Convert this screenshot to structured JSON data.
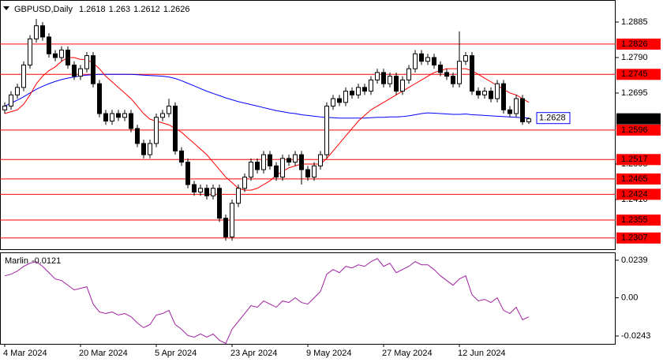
{
  "chart_data": [
    {
      "type": "candlestick",
      "title": "GBPUSD,Daily",
      "categories": [
        "4 Mar 2024",
        null,
        null,
        null,
        null,
        null,
        null,
        null,
        null,
        null,
        null,
        null,
        "20 Mar 2024",
        null,
        null,
        null,
        null,
        null,
        null,
        null,
        null,
        null,
        null,
        null,
        "5 Apr 2024",
        null,
        null,
        null,
        null,
        null,
        null,
        null,
        null,
        null,
        null,
        null,
        "23 Apr 2024",
        null,
        null,
        null,
        null,
        null,
        null,
        null,
        null,
        null,
        null,
        null,
        "9 May 2024",
        null,
        null,
        null,
        null,
        null,
        null,
        null,
        null,
        null,
        null,
        null,
        "27 May 2024",
        null,
        null,
        null,
        null,
        null,
        null,
        null,
        null,
        null,
        null,
        null,
        "12 Jun 2024",
        null,
        null,
        null,
        null,
        null,
        null,
        null,
        null,
        null,
        null,
        null
      ],
      "open": [
        1.265,
        1.266,
        1.269,
        1.271,
        1.277,
        1.284,
        1.2875,
        1.2845,
        1.28,
        1.279,
        1.281,
        1.277,
        1.274,
        1.276,
        1.2795,
        1.272,
        1.264,
        1.262,
        1.264,
        1.263,
        1.264,
        1.26,
        1.256,
        1.253,
        1.256,
        1.263,
        1.264,
        1.266,
        1.254,
        1.251,
        1.245,
        1.243,
        1.244,
        1.242,
        1.244,
        1.236,
        1.231,
        1.24,
        1.244,
        1.247,
        1.251,
        1.249,
        1.253,
        1.25,
        1.247,
        1.252,
        1.251,
        1.253,
        1.249,
        1.247,
        1.25,
        1.253,
        1.266,
        1.268,
        1.267,
        1.27,
        1.269,
        1.271,
        1.27,
        1.273,
        1.275,
        1.272,
        1.274,
        1.27,
        1.273,
        1.276,
        1.28,
        1.278,
        1.279,
        1.277,
        1.275,
        1.274,
        1.272,
        1.278,
        1.2795,
        1.27,
        1.269,
        1.27,
        1.268,
        1.272,
        1.265,
        1.264,
        1.268,
        1.2618
      ],
      "high": [
        1.267,
        1.27,
        1.272,
        1.278,
        1.285,
        1.2893,
        1.2885,
        1.2855,
        1.281,
        1.282,
        1.282,
        1.278,
        1.277,
        1.2805,
        1.2805,
        1.273,
        1.265,
        1.265,
        1.265,
        1.265,
        1.265,
        1.261,
        1.257,
        1.257,
        1.264,
        1.265,
        1.268,
        1.267,
        1.255,
        1.252,
        1.246,
        1.245,
        1.245,
        1.245,
        1.245,
        1.237,
        1.241,
        1.245,
        1.248,
        1.252,
        1.252,
        1.254,
        1.254,
        1.251,
        1.253,
        1.253,
        1.254,
        1.254,
        1.25,
        1.251,
        1.254,
        1.267,
        1.269,
        1.269,
        1.271,
        1.271,
        1.272,
        1.272,
        1.274,
        1.276,
        1.276,
        1.275,
        1.275,
        1.274,
        1.277,
        1.281,
        1.281,
        1.28,
        1.28,
        1.278,
        1.276,
        1.275,
        1.286,
        1.2805,
        1.2805,
        1.271,
        1.271,
        1.271,
        1.273,
        1.273,
        1.266,
        1.269,
        1.269,
        1.263
      ],
      "low": [
        1.264,
        1.265,
        1.268,
        1.27,
        1.276,
        1.283,
        1.2835,
        1.279,
        1.278,
        1.278,
        1.276,
        1.273,
        1.273,
        1.275,
        1.271,
        1.263,
        1.261,
        1.261,
        1.262,
        1.262,
        1.259,
        1.255,
        1.252,
        1.252,
        1.255,
        1.262,
        1.263,
        1.253,
        1.25,
        1.244,
        1.242,
        1.242,
        1.241,
        1.241,
        1.235,
        1.23,
        1.23,
        1.239,
        1.243,
        1.246,
        1.248,
        1.248,
        1.249,
        1.246,
        1.246,
        1.25,
        1.25,
        1.245,
        1.246,
        1.246,
        1.249,
        1.252,
        1.265,
        1.266,
        1.266,
        1.268,
        1.268,
        1.269,
        1.269,
        1.272,
        1.271,
        1.271,
        1.269,
        1.269,
        1.272,
        1.275,
        1.277,
        1.277,
        1.276,
        1.274,
        1.273,
        1.271,
        1.271,
        1.277,
        1.269,
        1.268,
        1.268,
        1.267,
        1.267,
        1.264,
        1.263,
        1.263,
        1.261,
        1.2612
      ],
      "close": [
        1.266,
        1.269,
        1.271,
        1.277,
        1.284,
        1.2875,
        1.2845,
        1.28,
        1.279,
        1.281,
        1.277,
        1.274,
        1.276,
        1.2795,
        1.272,
        1.264,
        1.262,
        1.264,
        1.263,
        1.264,
        1.26,
        1.256,
        1.253,
        1.256,
        1.263,
        1.264,
        1.266,
        1.254,
        1.251,
        1.245,
        1.243,
        1.244,
        1.242,
        1.244,
        1.236,
        1.231,
        1.24,
        1.244,
        1.247,
        1.251,
        1.249,
        1.253,
        1.25,
        1.247,
        1.252,
        1.251,
        1.253,
        1.249,
        1.247,
        1.25,
        1.253,
        1.266,
        1.268,
        1.267,
        1.27,
        1.269,
        1.271,
        1.27,
        1.273,
        1.275,
        1.272,
        1.274,
        1.27,
        1.273,
        1.276,
        1.28,
        1.278,
        1.279,
        1.277,
        1.275,
        1.274,
        1.272,
        1.278,
        1.2795,
        1.27,
        1.269,
        1.27,
        1.268,
        1.272,
        1.265,
        1.264,
        1.268,
        1.2618,
        1.2626
      ],
      "up_color": "#ffffff",
      "down_color": "#000000",
      "lines": [
        {
          "color": "#0000ff",
          "values": [
            1.266,
            1.2668,
            1.2676,
            1.2685,
            1.2695,
            1.2705,
            1.2713,
            1.272,
            1.2726,
            1.2731,
            1.2735,
            1.2738,
            1.2741,
            1.2743,
            1.2744,
            1.2745,
            1.2745,
            1.2745,
            1.2745,
            1.2745,
            1.2745,
            1.2744,
            1.2743,
            1.2742,
            1.2741,
            1.274,
            1.2738,
            1.2734,
            1.2728,
            1.2721,
            1.2714,
            1.2707,
            1.27,
            1.2694,
            1.2688,
            1.2682,
            1.2677,
            1.2672,
            1.2668,
            1.2664,
            1.266,
            1.2656,
            1.2652,
            1.2648,
            1.2645,
            1.2642,
            1.264,
            1.2637,
            1.2635,
            1.2633,
            1.2631,
            1.263,
            1.2629,
            1.2628,
            1.2628,
            1.2628,
            1.2628,
            1.2628,
            1.2629,
            1.263,
            1.263,
            1.2631,
            1.2631,
            1.2632,
            1.2634,
            1.2637,
            1.264,
            1.2642,
            1.2641,
            1.264,
            1.2639,
            1.2638,
            1.2638,
            1.2639,
            1.2637,
            1.2636,
            1.2635,
            1.2634,
            1.2633,
            1.2632,
            1.2631,
            1.263,
            1.2629,
            1.2628
          ]
        },
        {
          "color": "#ff0000",
          "values": [
            1.264,
            1.2645,
            1.265,
            1.2665,
            1.269,
            1.272,
            1.274,
            1.2755,
            1.2765,
            1.278,
            1.279,
            1.279,
            1.2785,
            1.2785,
            1.2775,
            1.276,
            1.274,
            1.2725,
            1.271,
            1.2695,
            1.268,
            1.266,
            1.264,
            1.2625,
            1.262,
            1.2615,
            1.261,
            1.26,
            1.259,
            1.2575,
            1.256,
            1.2545,
            1.253,
            1.251,
            1.249,
            1.247,
            1.2455,
            1.244,
            1.2435,
            1.2435,
            1.244,
            1.245,
            1.246,
            1.2475,
            1.2485,
            1.2495,
            1.25,
            1.2505,
            1.2505,
            1.2505,
            1.2505,
            1.252,
            1.254,
            1.256,
            1.258,
            1.26,
            1.262,
            1.2635,
            1.265,
            1.266,
            1.267,
            1.268,
            1.269,
            1.27,
            1.271,
            1.272,
            1.273,
            1.274,
            1.275,
            1.2755,
            1.276,
            1.276,
            1.276,
            1.276,
            1.2755,
            1.2745,
            1.2735,
            1.2725,
            1.2715,
            1.2705,
            1.2695,
            1.269,
            1.268,
            1.267
          ]
        }
      ],
      "levels": [
        1.2826,
        1.2745,
        1.2596,
        1.2517,
        1.2465,
        1.2424,
        1.2355,
        1.2307
      ],
      "level_color": "#ff0000",
      "ylim": [
        1.2277,
        1.2944
      ],
      "yticks": [
        1.2885,
        {
          "value": 1.279,
          "label": "1.2790"
        },
        1.2695,
        1.2505,
        {
          "value": 1.241,
          "label": "1.2410"
        }
      ],
      "grid": false
    },
    {
      "type": "line",
      "title": "Marlin",
      "color": "#a020a0",
      "values": [
        0.014,
        0.015,
        0.017,
        0.02,
        0.022,
        0.023,
        0.02,
        0.016,
        0.012,
        0.011,
        0.008,
        0.005,
        0.006,
        0.007,
        -0.004,
        -0.009,
        -0.01,
        -0.009,
        -0.011,
        -0.01,
        -0.012,
        -0.016,
        -0.019,
        -0.017,
        -0.011,
        -0.01,
        -0.008,
        -0.017,
        -0.02,
        -0.024,
        -0.025,
        -0.023,
        -0.025,
        -0.023,
        -0.027,
        -0.029,
        -0.02,
        -0.015,
        -0.01,
        -0.005,
        -0.006,
        -0.002,
        -0.004,
        -0.006,
        -0.002,
        -0.003,
        0.0,
        -0.003,
        -0.004,
        0.0,
        0.004,
        0.015,
        0.018,
        0.016,
        0.02,
        0.019,
        0.021,
        0.02,
        0.023,
        0.025,
        0.02,
        0.022,
        0.016,
        0.018,
        0.02,
        0.023,
        0.021,
        0.021,
        0.018,
        0.014,
        0.011,
        0.008,
        0.012,
        0.014,
        0.002,
        -0.002,
        -0.001,
        -0.003,
        0.0,
        -0.008,
        -0.01,
        -0.006,
        -0.014,
        -0.0121
      ],
      "ylim": [
        -0.0293,
        0.0289
      ],
      "yticks": [
        0.0239,
        {
          "value": 0,
          "label": "0.00"
        },
        -0.0243
      ]
    }
  ]
}
